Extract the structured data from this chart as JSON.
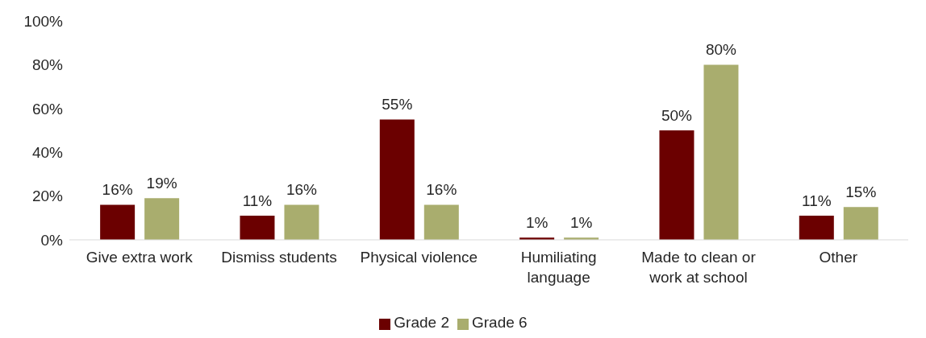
{
  "chart_data": {
    "type": "bar",
    "categories": [
      "Give extra work",
      "Dismiss students",
      "Physical violence",
      "Humiliating language",
      "Made to clean or work at school",
      "Other"
    ],
    "series": [
      {
        "name": "Grade 2",
        "color": "#6b0000",
        "values": [
          16,
          11,
          55,
          1,
          50,
          11
        ],
        "value_labels": [
          "16%",
          "11%",
          "55%",
          "1%",
          "50%",
          "11%"
        ]
      },
      {
        "name": "Grade 6",
        "color": "#a9ad6e",
        "values": [
          19,
          16,
          16,
          1,
          80,
          15
        ],
        "value_labels": [
          "19%",
          "16%",
          "16%",
          "1%",
          "80%",
          "15%"
        ]
      }
    ],
    "ylim": [
      0,
      100
    ],
    "yticks": [
      {
        "value": 0,
        "label": "0%"
      },
      {
        "value": 20,
        "label": "20%"
      },
      {
        "value": 40,
        "label": "40%"
      },
      {
        "value": 60,
        "label": "60%"
      },
      {
        "value": 80,
        "label": "80%"
      },
      {
        "value": 100,
        "label": "100%"
      }
    ],
    "grid": false,
    "legend": "bottom"
  }
}
